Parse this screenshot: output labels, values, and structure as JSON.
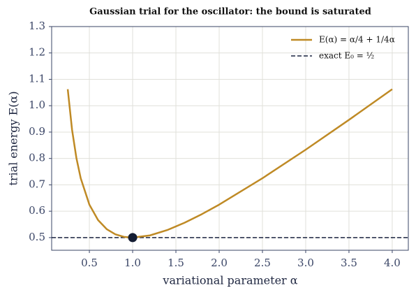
{
  "chart_data": {
    "type": "line",
    "title": "Gaussian trial for the oscillator: the bound is saturated",
    "x_label": "variational parameter α",
    "y_label": "trial energy E(α)",
    "x": [
      0.25,
      0.3,
      0.35,
      0.4,
      0.5,
      0.6,
      0.7,
      0.8,
      0.9,
      1.0,
      1.2,
      1.4,
      1.6,
      1.8,
      2.0,
      2.5,
      3.0,
      3.5,
      4.0
    ],
    "series": [
      {
        "name": "E(α) = α/4 + 1/4α",
        "color": "#bf8a25",
        "values": [
          1.0625,
          0.9083,
          0.8018,
          0.725,
          0.625,
          0.5667,
          0.5321,
          0.5125,
          0.5028,
          0.5,
          0.5083,
          0.5286,
          0.5563,
          0.5889,
          0.625,
          0.725,
          0.8333,
          0.9464,
          1.0625
        ]
      }
    ],
    "reference_line": {
      "name": "exact E₀ = ½",
      "value": 0.5,
      "color": "#1a2340"
    },
    "minimum": {
      "x": 1.0,
      "y": 0.5,
      "color": "#141d33"
    },
    "xlim": [
      0.064,
      4.186
    ],
    "ylim": [
      0.452,
      1.3
    ],
    "xticks": [
      0.5,
      {
        "value": 1,
        "label": "1.0"
      },
      1.5,
      {
        "value": 2,
        "label": "2.0"
      },
      2.5,
      {
        "value": 3,
        "label": "3.0"
      },
      3.5,
      {
        "value": 4,
        "label": "4.0"
      }
    ],
    "yticks": [
      0.5,
      0.6,
      0.7,
      0.8,
      0.9,
      {
        "value": 1,
        "label": "1.0"
      },
      1.1,
      1.2,
      1.3
    ],
    "grid": true,
    "legend": "upper right"
  }
}
